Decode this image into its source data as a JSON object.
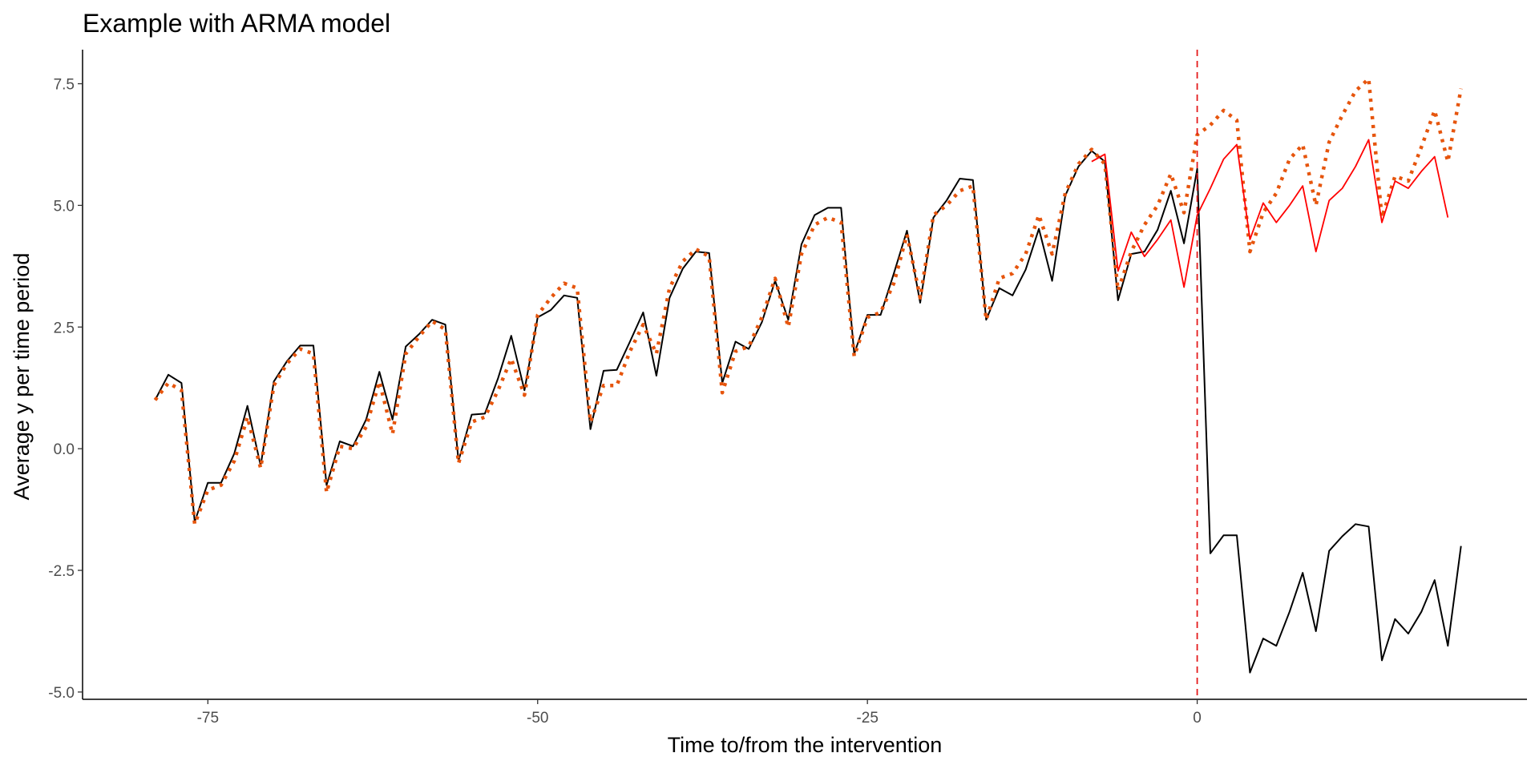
{
  "chart_data": {
    "type": "line",
    "title": "Example with ARMA model",
    "xlabel": "Time to/from the intervention",
    "ylabel": "Average y per time period",
    "xlim": [
      -84.5,
      25
    ],
    "ylim": [
      -5.15,
      8.2
    ],
    "x_ticks": [
      -75,
      -50,
      -25,
      0
    ],
    "x_tick_labels": [
      "-75",
      "-50",
      "-25",
      "0"
    ],
    "y_ticks": [
      -5,
      -2.5,
      0,
      2.5,
      5,
      7.5
    ],
    "y_tick_labels": [
      "-5.0",
      "-2.5",
      "0.0",
      "2.5",
      "5.0",
      "7.5"
    ],
    "grid": false,
    "legend": "none",
    "vline": {
      "x": 0,
      "color": "#e41a1c",
      "style": "dashed"
    },
    "series": [
      {
        "color": "#000000",
        "style": "solid",
        "x": [
          -79,
          -78,
          -77,
          -76,
          -75,
          -74,
          -73,
          -72,
          -71,
          -70,
          -69,
          -68,
          -67,
          -66,
          -65,
          -64,
          -63,
          -62,
          -61,
          -60,
          -59,
          -58,
          -57,
          -56,
          -55,
          -54,
          -53,
          -52,
          -51,
          -50,
          -49,
          -48,
          -47,
          -46,
          -45,
          -44,
          -43,
          -42,
          -41,
          -40,
          -39,
          -38,
          -37,
          -36,
          -35,
          -34,
          -33,
          -32,
          -31,
          -30,
          -29,
          -28,
          -27,
          -26,
          -25,
          -24,
          -23,
          -22,
          -21,
          -20,
          -19,
          -18,
          -17,
          -16,
          -15,
          -14,
          -13,
          -12,
          -11,
          -10,
          -9,
          -8,
          -7,
          -6,
          -5,
          -4,
          -3,
          -2,
          -1,
          0,
          1,
          2,
          3,
          4,
          5,
          6,
          7,
          8,
          9,
          10,
          11,
          12,
          13,
          14,
          15,
          16,
          17,
          18,
          19,
          20
        ],
        "values": [
          1.0,
          1.52,
          1.35,
          -1.5,
          -0.7,
          -0.7,
          -0.1,
          0.88,
          -0.35,
          1.38,
          1.8,
          2.12,
          2.12,
          -0.75,
          0.15,
          0.05,
          0.6,
          1.58,
          0.6,
          2.1,
          2.35,
          2.65,
          2.55,
          -0.25,
          0.7,
          0.72,
          1.45,
          2.32,
          1.2,
          2.7,
          2.85,
          3.15,
          3.1,
          0.4,
          1.6,
          1.62,
          2.2,
          2.8,
          1.5,
          3.1,
          3.7,
          4.05,
          4.02,
          1.35,
          2.2,
          2.05,
          2.6,
          3.45,
          2.65,
          4.2,
          4.8,
          4.95,
          4.95,
          1.95,
          2.75,
          2.75,
          3.6,
          4.48,
          3.0,
          4.75,
          5.1,
          5.55,
          5.52,
          2.65,
          3.3,
          3.15,
          3.68,
          4.52,
          3.45,
          5.2,
          5.8,
          6.12,
          5.9,
          3.05,
          4.0,
          4.05,
          4.5,
          5.3,
          4.22,
          5.75,
          -2.15,
          -1.78,
          -1.78,
          -4.6,
          -3.9,
          -4.05,
          -3.35,
          -2.55,
          -3.75,
          -2.1,
          -1.8,
          -1.55,
          -1.6,
          -4.35,
          -3.5,
          -3.8,
          -3.35,
          -2.7,
          -4.05,
          -2.0
        ]
      },
      {
        "color": "#e6550d",
        "style": "dotted",
        "x": [
          -79,
          -78,
          -77,
          -76,
          -75,
          -74,
          -73,
          -72,
          -71,
          -70,
          -69,
          -68,
          -67,
          -66,
          -65,
          -64,
          -63,
          -62,
          -61,
          -60,
          -59,
          -58,
          -57,
          -56,
          -55,
          -54,
          -53,
          -52,
          -51,
          -50,
          -49,
          -48,
          -47,
          -46,
          -45,
          -44,
          -43,
          -42,
          -41,
          -40,
          -39,
          -38,
          -37,
          -36,
          -35,
          -34,
          -33,
          -32,
          -31,
          -30,
          -29,
          -28,
          -27,
          -26,
          -25,
          -24,
          -23,
          -22,
          -21,
          -20,
          -19,
          -18,
          -17,
          -16,
          -15,
          -14,
          -13,
          -12,
          -11,
          -10,
          -9,
          -8,
          -7,
          -6,
          -5,
          -4,
          -3,
          -2,
          -1,
          0,
          1,
          2,
          3,
          4,
          5,
          6,
          7,
          8,
          9,
          10,
          11,
          12,
          13,
          14,
          15,
          16,
          17,
          18,
          19,
          20
        ],
        "values": [
          1.0,
          1.35,
          1.2,
          -1.55,
          -0.85,
          -0.75,
          -0.25,
          0.65,
          -0.4,
          1.3,
          1.75,
          2.05,
          1.95,
          -0.9,
          0.05,
          0.0,
          0.45,
          1.38,
          0.3,
          1.95,
          2.3,
          2.62,
          2.45,
          -0.3,
          0.55,
          0.65,
          1.2,
          1.85,
          1.1,
          2.75,
          3.1,
          3.4,
          3.3,
          0.55,
          1.3,
          1.3,
          2.0,
          2.55,
          1.95,
          3.3,
          3.85,
          4.1,
          3.95,
          1.15,
          2.0,
          2.1,
          2.7,
          3.5,
          2.5,
          4.0,
          4.6,
          4.75,
          4.65,
          1.9,
          2.7,
          2.8,
          3.4,
          4.4,
          3.1,
          4.8,
          5.0,
          5.3,
          5.4,
          2.65,
          3.5,
          3.6,
          4.0,
          4.8,
          4.0,
          5.25,
          5.85,
          6.15,
          5.85,
          3.25,
          4.05,
          4.6,
          5.0,
          5.65,
          4.85,
          6.45,
          6.65,
          6.95,
          6.75,
          4.05,
          4.85,
          5.25,
          5.95,
          6.25,
          5.0,
          6.3,
          6.85,
          7.35,
          7.6,
          4.75,
          5.6,
          5.5,
          6.2,
          6.95,
          5.9,
          7.4
        ]
      },
      {
        "color": "#ff0000",
        "style": "solid",
        "x": [
          -8,
          -7,
          -6,
          -5,
          -4,
          -3,
          -2,
          -1,
          0,
          1,
          2,
          3,
          4,
          5,
          6,
          7,
          8,
          9,
          10,
          11,
          12,
          13,
          14,
          15,
          16,
          17,
          18,
          19
        ],
        "values": [
          5.9,
          6.05,
          3.65,
          4.45,
          3.95,
          4.3,
          4.7,
          3.32,
          4.8,
          5.35,
          5.95,
          6.25,
          4.3,
          5.05,
          4.65,
          5.0,
          5.4,
          4.05,
          5.1,
          5.35,
          5.8,
          6.35,
          4.65,
          5.5,
          5.35,
          5.7,
          6.0,
          4.75
        ]
      }
    ]
  }
}
